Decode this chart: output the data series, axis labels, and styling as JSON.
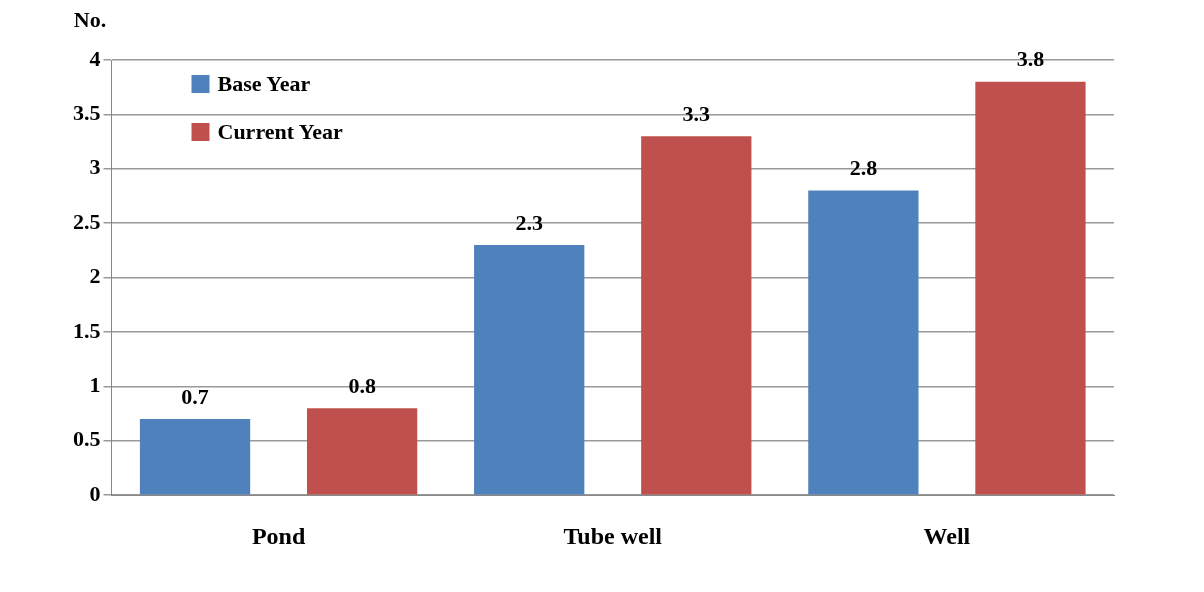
{
  "chart_data": {
    "type": "bar",
    "ylabel": "No.",
    "categories": [
      "Pond",
      "Tube well",
      "Well"
    ],
    "series": [
      {
        "name": "Base Year",
        "color": "#4f81bd",
        "values": [
          0.7,
          2.3,
          2.8
        ]
      },
      {
        "name": "Current Year",
        "color": "#c0504d",
        "values": [
          0.8,
          3.3,
          3.8
        ]
      }
    ],
    "ylim": [
      0,
      4
    ],
    "yticks": [
      0,
      0.5,
      1,
      1.5,
      2,
      2.5,
      3,
      3.5,
      4
    ],
    "grid": "y",
    "legend": "top left",
    "data_labels": true
  }
}
